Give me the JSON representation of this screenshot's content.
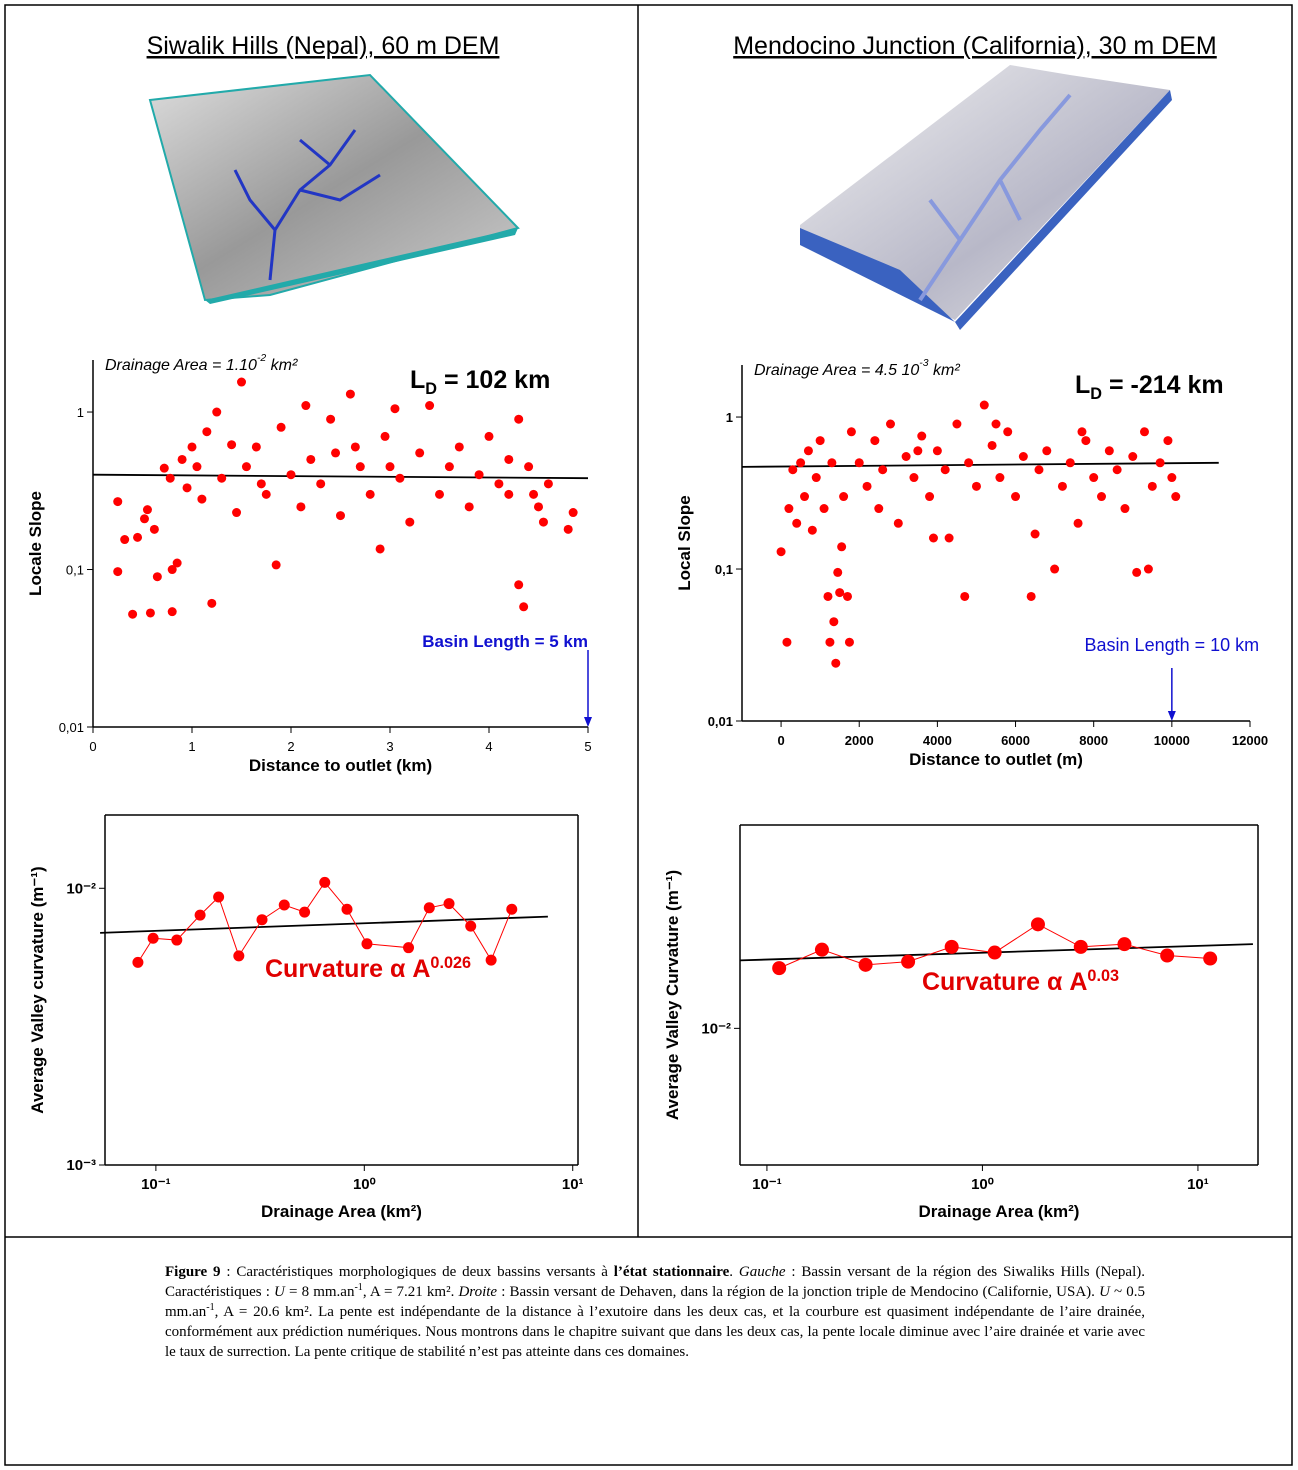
{
  "header": {
    "left_title": "Siwalik Hills (Nepal), 60 m DEM",
    "right_title": "Mendocino Junction (California), 30 m DEM"
  },
  "chart_data": [
    {
      "type": "scatter",
      "xlabel": "Distance to outlet (km)",
      "ylabel": "Locale Slope",
      "xlim": [
        0,
        5
      ],
      "ylim": [
        0.01,
        2.14
      ],
      "ylog": true,
      "xticks": [
        0,
        1,
        2,
        3,
        4,
        5
      ],
      "yticks": [
        {
          "value": 0.01,
          "label": "0,01"
        },
        {
          "value": 0.1,
          "label": "0,1"
        },
        {
          "value": 1,
          "label": "1"
        }
      ],
      "color": "#ff0000",
      "x": [
        0.25,
        0.25,
        0.32,
        0.4,
        0.45,
        0.52,
        0.55,
        0.58,
        0.62,
        0.65,
        0.72,
        0.78,
        0.8,
        0.8,
        0.85,
        0.9,
        0.95,
        1.0,
        1.05,
        1.1,
        1.15,
        1.2,
        1.25,
        1.3,
        1.4,
        1.45,
        1.5,
        1.55,
        1.65,
        1.75,
        1.85,
        1.9,
        2.0,
        2.1,
        2.15,
        2.2,
        2.3,
        2.4,
        2.5,
        2.6,
        2.65,
        2.7,
        2.8,
        2.9,
        2.95,
        3.05,
        3.1,
        3.2,
        3.3,
        3.4,
        3.5,
        3.6,
        3.7,
        3.8,
        3.9,
        4.0,
        4.1,
        4.2,
        4.3,
        4.3,
        4.35,
        4.4,
        4.45,
        4.5,
        4.55,
        4.6,
        4.8,
        4.85,
        4.2,
        3.0,
        1.7,
        2.45
      ],
      "values": [
        0.27,
        0.097,
        0.155,
        0.052,
        0.16,
        0.21,
        0.24,
        0.053,
        0.18,
        0.09,
        0.44,
        0.38,
        0.1,
        0.054,
        0.11,
        0.5,
        0.33,
        0.6,
        0.45,
        0.28,
        0.75,
        0.061,
        1.0,
        0.38,
        0.62,
        0.23,
        1.55,
        0.45,
        0.6,
        0.3,
        0.107,
        0.8,
        0.4,
        0.25,
        1.1,
        0.5,
        0.35,
        0.9,
        0.22,
        1.3,
        0.6,
        0.45,
        0.3,
        0.135,
        0.7,
        1.05,
        0.38,
        0.2,
        0.55,
        1.1,
        0.3,
        0.45,
        0.6,
        0.25,
        0.4,
        0.7,
        0.35,
        0.5,
        0.9,
        0.08,
        0.058,
        0.45,
        0.3,
        0.25,
        0.2,
        0.35,
        0.18,
        0.23,
        0.3,
        0.45,
        0.35,
        0.55
      ],
      "trend": {
        "x": [
          0,
          5
        ],
        "y": [
          0.4,
          0.38
        ]
      },
      "area_note": {
        "text": "Drainage Area = 1.10",
        "sup": "-2",
        "suffix": " km²"
      },
      "ld_note": {
        "text": "L",
        "sub": "D",
        "suffix": " = 102 km"
      },
      "basin_note": "Basin Length = 5 km",
      "arrow_x": 5
    },
    {
      "type": "scatter",
      "xlabel": "Distance to outlet (m)",
      "ylabel": "Local Slope",
      "xlim": [
        -1000,
        12000
      ],
      "ylim": [
        0.01,
        2.2
      ],
      "ylog": true,
      "xticks": [
        0,
        2000,
        4000,
        6000,
        8000,
        10000,
        12000
      ],
      "yticks": [
        {
          "value": 0.01,
          "label": "0,01"
        },
        {
          "value": 0.1,
          "label": "0,1"
        },
        {
          "value": 1,
          "label": "1"
        }
      ],
      "color": "#ff0000",
      "x": [
        0,
        150,
        200,
        300,
        400,
        500,
        600,
        700,
        800,
        900,
        1000,
        1100,
        1200,
        1250,
        1300,
        1350,
        1400,
        1450,
        1500,
        1550,
        1600,
        1700,
        1750,
        1800,
        2000,
        2200,
        2400,
        2600,
        2800,
        3000,
        3200,
        3400,
        3600,
        3800,
        3900,
        4000,
        4200,
        4300,
        4500,
        4700,
        4800,
        5000,
        5200,
        5400,
        5600,
        5800,
        6000,
        6200,
        6400,
        6500,
        6600,
        6800,
        7000,
        7200,
        7400,
        7600,
        7800,
        8000,
        8200,
        8400,
        8600,
        8800,
        9000,
        9100,
        9300,
        9400,
        9500,
        9700,
        9900,
        10000,
        10100,
        2500,
        3500,
        5500,
        7700
      ],
      "values": [
        0.13,
        0.033,
        0.25,
        0.45,
        0.2,
        0.5,
        0.3,
        0.6,
        0.18,
        0.4,
        0.7,
        0.25,
        0.066,
        0.033,
        0.5,
        0.045,
        0.024,
        0.095,
        0.07,
        0.14,
        0.3,
        0.066,
        0.033,
        0.8,
        0.5,
        0.35,
        0.7,
        0.45,
        0.9,
        0.2,
        0.55,
        0.4,
        0.75,
        0.3,
        0.16,
        0.6,
        0.45,
        0.16,
        0.9,
        0.066,
        0.5,
        0.35,
        1.2,
        0.65,
        0.4,
        0.8,
        0.3,
        0.55,
        0.066,
        0.17,
        0.45,
        0.6,
        0.1,
        0.35,
        0.5,
        0.2,
        0.7,
        0.4,
        0.3,
        0.6,
        0.45,
        0.25,
        0.55,
        0.095,
        0.8,
        0.1,
        0.35,
        0.5,
        0.7,
        0.4,
        0.3,
        0.25,
        0.6,
        0.9,
        0.8
      ],
      "trend": {
        "x": [
          -1000,
          11200
        ],
        "y": [
          0.47,
          0.5
        ]
      },
      "area_note": {
        "text": "Drainage Area = 4.5 10",
        "sup": "-3",
        "suffix": " km²"
      },
      "ld_note": {
        "text": "L",
        "sub": "D",
        "suffix": " = -214 km"
      },
      "basin_note": "Basin Length = 10 km",
      "arrow_x": 10000
    },
    {
      "type": "line",
      "xlabel": "Drainage Area (km²)",
      "ylabel": "Average Valley curvature (m⁻¹)",
      "xlim": [
        0.057,
        10.6
      ],
      "ylim": [
        0.001,
        0.0184
      ],
      "xlog": true,
      "ylog": true,
      "xticks": [
        {
          "value": 0.1,
          "label": "10⁻¹"
        },
        {
          "value": 1,
          "label": "10⁰"
        },
        {
          "value": 10,
          "label": "10¹"
        }
      ],
      "yticks": [
        {
          "value": 0.001,
          "label": "10⁻³"
        },
        {
          "value": 0.01,
          "label": "10⁻²"
        }
      ],
      "color": "#ff0000",
      "x": [
        0.082,
        0.097,
        0.126,
        0.163,
        0.2,
        0.25,
        0.323,
        0.413,
        0.517,
        0.646,
        0.826,
        1.03,
        1.63,
        2.05,
        2.55,
        3.24,
        4.06,
        5.1
      ],
      "values": [
        0.0054,
        0.0066,
        0.0065,
        0.008,
        0.0093,
        0.0057,
        0.0077,
        0.0087,
        0.0082,
        0.0105,
        0.0084,
        0.0063,
        0.0061,
        0.0085,
        0.0088,
        0.0073,
        0.0055,
        0.0084
      ],
      "trend": {
        "x": [
          0.054,
          7.6
        ],
        "y": [
          0.0069,
          0.0079
        ]
      },
      "fit_note": {
        "text": "Curvature α A",
        "sup": "0.026"
      }
    },
    {
      "type": "line",
      "xlabel": "Drainage Area (km²)",
      "ylabel": "Average Valley Curvature (m⁻¹)",
      "xlim": [
        0.075,
        19
      ],
      "ylim": [
        0.003,
        0.06
      ],
      "xlog": true,
      "ylog": true,
      "xticks": [
        {
          "value": 0.1,
          "label": "10⁻¹"
        },
        {
          "value": 1,
          "label": "10⁰"
        },
        {
          "value": 10,
          "label": "10¹"
        }
      ],
      "yticks": [
        {
          "value": 0.01,
          "label": "10⁻²"
        }
      ],
      "color": "#ff0000",
      "x": [
        0.114,
        0.18,
        0.287,
        0.452,
        0.72,
        1.14,
        1.81,
        2.86,
        4.56,
        7.2,
        11.4
      ],
      "values": [
        0.017,
        0.02,
        0.0175,
        0.018,
        0.0205,
        0.0195,
        0.025,
        0.0205,
        0.021,
        0.019,
        0.0185
      ],
      "trend": {
        "x": [
          0.075,
          18
        ],
        "y": [
          0.0182,
          0.021
        ]
      },
      "fit_note": {
        "text": "Curvature α A",
        "sup": "0.03"
      }
    }
  ],
  "caption": [
    {
      "t": "Figure 9",
      "s": "b"
    },
    {
      "t": " : Caractéristiques morphologiques de deux bassins versants à ",
      "s": ""
    },
    {
      "t": "l’état stationnaire",
      "s": "b"
    },
    {
      "t": ". ",
      "s": ""
    },
    {
      "t": "Gauche",
      "s": "i"
    },
    {
      "t": " : Bassin versant de la région des Siwaliks Hills (Nepal). Caractéristiques : ",
      "s": ""
    },
    {
      "t": "U",
      "s": "i"
    },
    {
      "t": " = 8 mm.an",
      "s": ""
    },
    {
      "t": "-1",
      "s": "sup"
    },
    {
      "t": ", A = 7.21 km². ",
      "s": ""
    },
    {
      "t": "Droite",
      "s": "i"
    },
    {
      "t": " : Bassin versant de Dehaven, dans la région de la jonction triple de Mendocino (Californie, USA). ",
      "s": ""
    },
    {
      "t": "U",
      "s": "i"
    },
    {
      "t": " ~ 0.5 mm.an",
      "s": ""
    },
    {
      "t": "-1",
      "s": "sup"
    },
    {
      "t": ", A = 20.6 km². La pente est indépendante de la distance à l’exutoire dans les deux cas, et la courbure est quasiment indépendante de l’aire drainée, conformément aux prédiction numériques. Nous montrons dans le chapitre suivant que dans les deux cas, la pente locale diminue avec l’aire drainée et varie avec le taux de surrection. La pente critique de stabilité n’est pas atteinte dans ces domaines.",
      "s": ""
    }
  ]
}
